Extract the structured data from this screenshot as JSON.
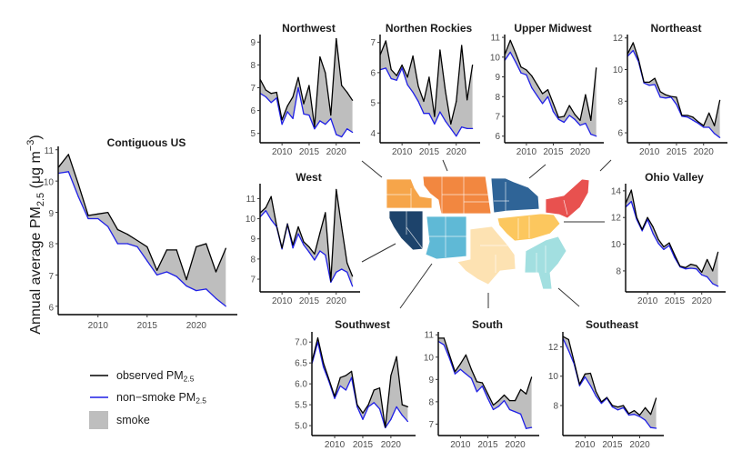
{
  "chart_data": {
    "type": "area",
    "ylabel": {
      "text": "Annual average PM",
      "sub": "2.5",
      "unit_open": " (μg m",
      "sup": "−3",
      "unit_close": ")"
    },
    "x": [
      2006,
      2007,
      2008,
      2009,
      2010,
      2011,
      2012,
      2013,
      2014,
      2015,
      2016,
      2017,
      2018,
      2019,
      2020,
      2021,
      2022,
      2023
    ],
    "legend": {
      "position": "bottom-left",
      "items": [
        {
          "key": "observed",
          "label": "observed PM",
          "sub": "2.5",
          "color": "#000000"
        },
        {
          "key": "nonsmoke",
          "label": "non−smoke PM",
          "sub": "2.5",
          "color": "#1f1fe6"
        },
        {
          "key": "smoke",
          "label": "smoke",
          "sub": "",
          "color": "#bebebe"
        }
      ]
    },
    "colors": {
      "observed": "#000000",
      "nonsmoke": "#1f1fe6",
      "smoke": "#bebebe"
    },
    "panels": [
      {
        "id": "contiguous-us",
        "title": "Contiguous US",
        "xticks": [
          2010,
          2015,
          2020
        ],
        "yticks": [
          6,
          7,
          8,
          9,
          10,
          11
        ],
        "ylim": [
          5.85,
          11.05
        ],
        "observed": [
          10.45,
          10.85,
          9.9,
          8.9,
          8.95,
          9.0,
          8.45,
          8.3,
          8.1,
          7.9,
          7.15,
          7.8,
          7.8,
          6.85,
          7.9,
          8.0,
          7.1,
          7.85
        ],
        "nonsmoke": [
          10.25,
          10.3,
          9.5,
          8.8,
          8.8,
          8.55,
          8.0,
          8.0,
          7.9,
          7.45,
          7.0,
          7.1,
          6.95,
          6.65,
          6.5,
          6.55,
          6.25,
          6.0
        ]
      },
      {
        "id": "northwest",
        "title": "Northwest",
        "xticks": [
          2010,
          2015,
          2020
        ],
        "yticks": [
          5,
          6,
          7,
          8,
          9
        ],
        "ylim": [
          4.75,
          9.25
        ],
        "observed": [
          7.35,
          6.9,
          6.75,
          6.8,
          5.6,
          6.2,
          6.6,
          7.45,
          6.3,
          7.1,
          5.3,
          8.35,
          7.65,
          5.8,
          9.15,
          7.1,
          6.8,
          6.45
        ],
        "nonsmoke": [
          6.75,
          6.6,
          6.35,
          6.55,
          5.4,
          5.95,
          5.65,
          7.0,
          5.85,
          5.8,
          5.2,
          5.55,
          5.4,
          5.65,
          4.95,
          4.85,
          5.2,
          5.05
        ]
      },
      {
        "id": "northern-rockies",
        "title": "Northen Rockies",
        "xticks": [
          2010,
          2015,
          2020
        ],
        "yticks": [
          4,
          5,
          6,
          7
        ],
        "ylim": [
          3.8,
          7.2
        ],
        "observed": [
          6.6,
          7.05,
          6.1,
          5.9,
          6.25,
          5.85,
          6.55,
          5.55,
          5.05,
          5.85,
          4.55,
          6.75,
          5.4,
          4.3,
          5.05,
          6.9,
          5.1,
          6.25
        ],
        "nonsmoke": [
          6.1,
          6.15,
          5.8,
          5.75,
          6.15,
          5.6,
          5.35,
          5.05,
          4.65,
          4.65,
          4.3,
          4.7,
          4.4,
          4.15,
          3.9,
          4.2,
          4.15,
          4.15
        ]
      },
      {
        "id": "upper-midwest",
        "title": "Upper Midwest",
        "xticks": [
          2010,
          2015,
          2020
        ],
        "yticks": [
          6,
          7,
          8,
          9,
          10,
          11
        ],
        "ylim": [
          5.85,
          11.05
        ],
        "observed": [
          10.15,
          10.85,
          10.2,
          9.5,
          9.35,
          9.05,
          8.6,
          8.15,
          8.35,
          7.65,
          6.95,
          7.0,
          7.55,
          7.1,
          6.8,
          8.1,
          6.8,
          9.45
        ],
        "nonsmoke": [
          9.85,
          10.25,
          9.75,
          9.2,
          9.1,
          8.45,
          8.05,
          7.65,
          8.0,
          7.25,
          6.85,
          6.7,
          7.05,
          6.85,
          6.55,
          6.65,
          6.1,
          6.0
        ]
      },
      {
        "id": "northeast",
        "title": "Northeast",
        "xticks": [
          2010,
          2015,
          2020
        ],
        "yticks": [
          6,
          8,
          10,
          12
        ],
        "ylim": [
          5.6,
          12.1
        ],
        "observed": [
          11.0,
          11.7,
          10.65,
          9.2,
          9.2,
          9.45,
          8.6,
          8.4,
          8.3,
          8.25,
          7.1,
          7.1,
          7.0,
          6.7,
          6.45,
          7.25,
          6.45,
          8.05
        ],
        "nonsmoke": [
          10.85,
          11.2,
          10.5,
          9.15,
          9.0,
          9.05,
          8.25,
          8.2,
          8.25,
          7.8,
          7.05,
          7.0,
          6.8,
          6.6,
          6.35,
          6.35,
          5.95,
          5.7
        ]
      },
      {
        "id": "west",
        "title": "West",
        "xticks": [
          2010,
          2015,
          2020
        ],
        "yticks": [
          7,
          8,
          9,
          10,
          11
        ],
        "ylim": [
          6.55,
          11.65
        ],
        "observed": [
          10.3,
          10.55,
          11.1,
          9.65,
          8.55,
          9.75,
          8.7,
          9.6,
          8.85,
          8.6,
          8.25,
          9.3,
          10.3,
          6.9,
          11.45,
          9.6,
          7.8,
          7.15
        ],
        "nonsmoke": [
          10.1,
          10.4,
          9.95,
          9.6,
          8.5,
          9.7,
          8.55,
          9.25,
          8.7,
          8.35,
          7.95,
          8.4,
          8.2,
          6.85,
          7.35,
          7.5,
          7.35,
          6.65
        ]
      },
      {
        "id": "ohio-valley",
        "title": "Ohio Valley",
        "xticks": [
          2010,
          2015,
          2020
        ],
        "yticks": [
          8,
          10,
          12,
          14
        ],
        "ylim": [
          6.7,
          14.4
        ],
        "observed": [
          13.1,
          14.05,
          12.0,
          11.1,
          12.0,
          11.3,
          10.35,
          9.8,
          10.1,
          9.2,
          8.35,
          8.25,
          8.5,
          8.4,
          7.9,
          8.85,
          8.0,
          9.4
        ],
        "nonsmoke": [
          12.8,
          13.2,
          11.85,
          11.0,
          11.85,
          10.8,
          10.05,
          9.6,
          9.9,
          9.0,
          8.3,
          8.15,
          8.2,
          8.15,
          7.7,
          7.55,
          7.05,
          6.85
        ]
      },
      {
        "id": "southwest",
        "title": "Southwest",
        "xticks": [
          2010,
          2015,
          2020
        ],
        "yticks": [
          5.0,
          5.5,
          6.0,
          6.5,
          7.0
        ],
        "ylim": [
          4.85,
          7.2
        ],
        "observed": [
          6.55,
          7.1,
          6.5,
          6.1,
          5.7,
          6.15,
          6.2,
          6.3,
          5.5,
          5.3,
          5.5,
          5.85,
          5.9,
          4.95,
          6.2,
          6.65,
          5.5,
          5.45
        ],
        "nonsmoke": [
          6.5,
          7.0,
          6.4,
          6.05,
          5.65,
          5.95,
          5.85,
          6.15,
          5.45,
          5.15,
          5.45,
          5.55,
          5.4,
          4.95,
          5.15,
          5.45,
          5.25,
          5.1
        ]
      },
      {
        "id": "south",
        "title": "South",
        "xticks": [
          2010,
          2015,
          2020
        ],
        "yticks": [
          7,
          8,
          9,
          10,
          11
        ],
        "ylim": [
          6.65,
          11.05
        ],
        "observed": [
          10.85,
          10.85,
          10.1,
          9.35,
          9.7,
          10.1,
          9.45,
          8.9,
          8.85,
          8.35,
          7.85,
          8.05,
          8.3,
          8.05,
          8.05,
          8.55,
          8.35,
          9.1
        ],
        "nonsmoke": [
          10.7,
          10.55,
          9.95,
          9.25,
          9.45,
          9.25,
          9.05,
          8.45,
          8.7,
          8.15,
          7.65,
          7.8,
          8.05,
          7.65,
          7.55,
          7.45,
          6.8,
          6.85
        ]
      },
      {
        "id": "southeast",
        "title": "Southeast",
        "xticks": [
          2010,
          2015,
          2020
        ],
        "yticks": [
          8,
          10,
          12
        ],
        "ylim": [
          6.2,
          12.9
        ],
        "observed": [
          12.7,
          12.5,
          11.0,
          9.45,
          10.15,
          10.2,
          8.95,
          8.25,
          8.55,
          8.0,
          7.9,
          8.0,
          7.45,
          7.65,
          7.35,
          7.85,
          7.4,
          8.5
        ],
        "nonsmoke": [
          12.55,
          11.75,
          10.85,
          9.35,
          9.95,
          9.35,
          8.65,
          8.15,
          8.5,
          7.9,
          7.7,
          7.85,
          7.35,
          7.4,
          7.25,
          7.0,
          6.5,
          6.45
        ]
      }
    ],
    "map": {
      "regions": [
        {
          "id": "northwest",
          "color": "#f6a54a"
        },
        {
          "id": "northern-rockies",
          "color": "#f28740"
        },
        {
          "id": "upper-midwest",
          "color": "#2f6497"
        },
        {
          "id": "northeast",
          "color": "#e8514f"
        },
        {
          "id": "west",
          "color": "#1d436b"
        },
        {
          "id": "southwest",
          "color": "#5fb9d6"
        },
        {
          "id": "south",
          "color": "#fde2b2"
        },
        {
          "id": "ohio-valley",
          "color": "#fcc75e"
        },
        {
          "id": "southeast",
          "color": "#a2dfe0"
        }
      ]
    }
  }
}
